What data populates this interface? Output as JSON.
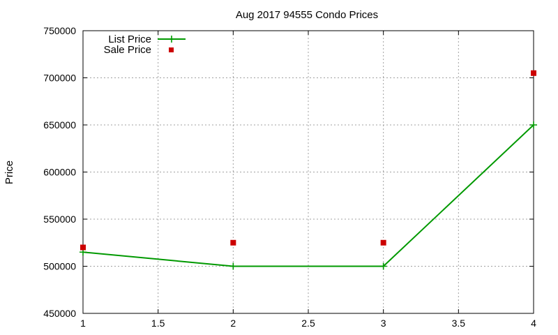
{
  "chart_data": {
    "type": "line",
    "title": "Aug 2017 94555 Condo Prices",
    "xlabel": "",
    "ylabel": "Price",
    "xlim": [
      1,
      4
    ],
    "ylim": [
      450000,
      750000
    ],
    "x_ticks": [
      1,
      1.5,
      2,
      2.5,
      3,
      3.5,
      4
    ],
    "y_ticks": [
      450000,
      500000,
      550000,
      600000,
      650000,
      700000,
      750000
    ],
    "grid": true,
    "legend_position": "top-left",
    "series": [
      {
        "name": "List Price",
        "style": "line-with-plus-markers",
        "color": "#009900",
        "points": [
          {
            "x": 1,
            "y": 515000
          },
          {
            "x": 2,
            "y": 500000
          },
          {
            "x": 3,
            "y": 500000
          },
          {
            "x": 4,
            "y": 650000
          }
        ]
      },
      {
        "name": "Sale Price",
        "style": "square-markers",
        "color": "#cc0000",
        "points": [
          {
            "x": 1,
            "y": 520000
          },
          {
            "x": 2,
            "y": 525000
          },
          {
            "x": 3,
            "y": 525000
          },
          {
            "x": 4,
            "y": 705000
          }
        ]
      }
    ]
  }
}
